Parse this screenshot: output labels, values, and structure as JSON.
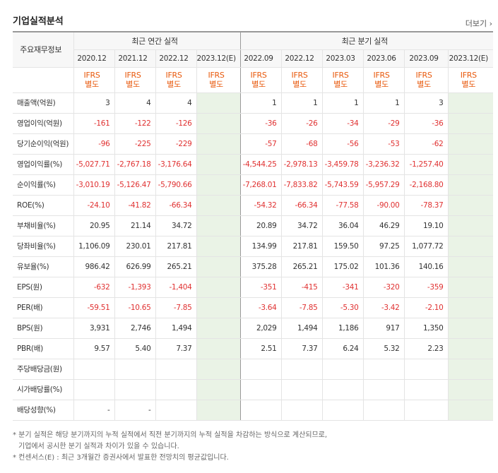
{
  "title": "기업실적분석",
  "more_link": "더보기",
  "headers": {
    "corner": "주요재무정보",
    "annual_group": "최근 연간 실적",
    "quarter_group": "최근 분기 실적",
    "annual_periods": [
      "2020.12",
      "2021.12",
      "2022.12",
      "2023.12(E)"
    ],
    "quarter_periods": [
      "2022.09",
      "2022.12",
      "2023.03",
      "2023.06",
      "2023.09",
      "2023.12(E)"
    ],
    "basis_line1": "IFRS",
    "basis_line2": "별도"
  },
  "rows": [
    {
      "label": "매출액(억원)",
      "values": [
        "3",
        "4",
        "4",
        "",
        "1",
        "1",
        "1",
        "1",
        "3",
        ""
      ]
    },
    {
      "label": "영업이익(억원)",
      "values": [
        "-161",
        "-122",
        "-126",
        "",
        "-36",
        "-26",
        "-34",
        "-29",
        "-36",
        ""
      ]
    },
    {
      "label": "당기순이익(억원)",
      "values": [
        "-96",
        "-225",
        "-229",
        "",
        "-57",
        "-68",
        "-56",
        "-53",
        "-62",
        ""
      ]
    },
    {
      "label": "영업이익률(%)",
      "values": [
        "-5,027.71",
        "-2,767.18",
        "-3,176.64",
        "",
        "-4,544.25",
        "-2,978.13",
        "-3,459.78",
        "-3,236.32",
        "-1,257.40",
        ""
      ]
    },
    {
      "label": "순이익률(%)",
      "values": [
        "-3,010.19",
        "-5,126.47",
        "-5,790.66",
        "",
        "-7,268.01",
        "-7,833.82",
        "-5,743.59",
        "-5,957.29",
        "-2,168.80",
        ""
      ]
    },
    {
      "label": "ROE(%)",
      "values": [
        "-24.10",
        "-41.82",
        "-66.34",
        "",
        "-54.32",
        "-66.34",
        "-77.58",
        "-90.00",
        "-78.37",
        ""
      ]
    },
    {
      "label": "부채비율(%)",
      "values": [
        "20.95",
        "21.14",
        "34.72",
        "",
        "20.89",
        "34.72",
        "36.04",
        "46.29",
        "19.10",
        ""
      ]
    },
    {
      "label": "당좌비율(%)",
      "values": [
        "1,106.09",
        "230.01",
        "217.81",
        "",
        "134.99",
        "217.81",
        "159.50",
        "97.25",
        "1,077.72",
        ""
      ]
    },
    {
      "label": "유보율(%)",
      "values": [
        "986.42",
        "626.99",
        "265.21",
        "",
        "375.28",
        "265.21",
        "175.02",
        "101.36",
        "140.16",
        ""
      ]
    },
    {
      "label": "EPS(원)",
      "values": [
        "-632",
        "-1,393",
        "-1,404",
        "",
        "-351",
        "-415",
        "-341",
        "-320",
        "-359",
        ""
      ]
    },
    {
      "label": "PER(배)",
      "values": [
        "-59.51",
        "-10.65",
        "-7.85",
        "",
        "-3.64",
        "-7.85",
        "-5.30",
        "-3.42",
        "-2.10",
        ""
      ]
    },
    {
      "label": "BPS(원)",
      "values": [
        "3,931",
        "2,746",
        "1,494",
        "",
        "2,029",
        "1,494",
        "1,186",
        "917",
        "1,350",
        ""
      ]
    },
    {
      "label": "PBR(배)",
      "values": [
        "9.57",
        "5.40",
        "7.37",
        "",
        "2.51",
        "7.37",
        "6.24",
        "5.32",
        "2.23",
        ""
      ]
    },
    {
      "label": "주당배당금(원)",
      "values": [
        "",
        "",
        "",
        "",
        "",
        "",
        "",
        "",
        "",
        ""
      ]
    },
    {
      "label": "시가배당률(%)",
      "values": [
        "",
        "",
        "",
        "",
        "",
        "",
        "",
        "",
        "",
        ""
      ]
    },
    {
      "label": "배당성향(%)",
      "values": [
        "-",
        "-",
        "",
        "",
        "",
        "",
        "",
        "",
        "",
        ""
      ]
    }
  ],
  "notes": [
    "* 분기 실적은 해당 분기까지의 누적 실적에서 직전 분기까지의 누적 실적을 차감하는 방식으로 계산되므로,",
    "기업에서 공시한 분기 실적과 차이가 있을 수 있습니다.",
    "* 컨센서스(E) : 최근 3개월간 증권사에서 발표한 전망치의 평균값입니다."
  ]
}
